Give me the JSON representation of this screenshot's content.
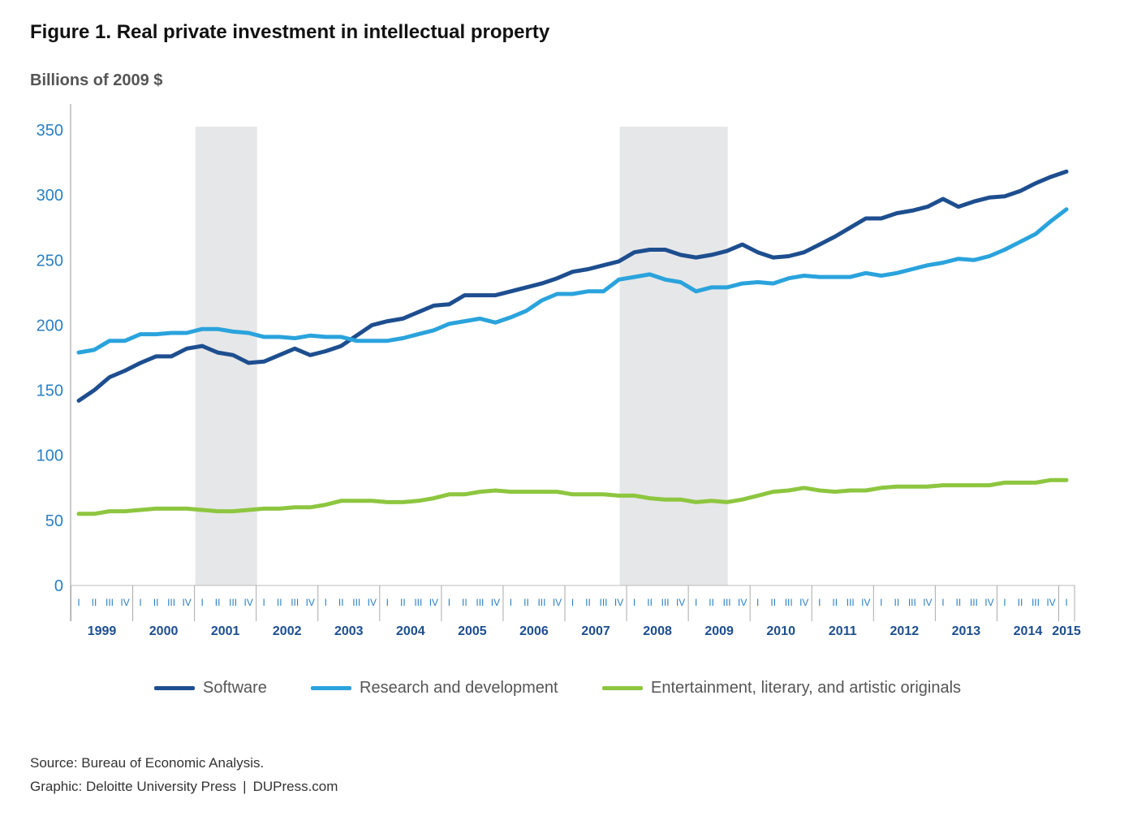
{
  "header": {
    "title": "Figure 1. Real private investment in intellectual property",
    "subtitle": "Billions of 2009 $"
  },
  "footer": {
    "source": "Source: Bureau of Economic Analysis.",
    "graphic": "Graphic: Deloitte University Press",
    "separator": "|",
    "site": "DUPress.com"
  },
  "legend": [
    {
      "label": "Software",
      "color": "#1d4e8f"
    },
    {
      "label": "Research and development",
      "color": "#2aa3dc"
    },
    {
      "label": "Entertainment, literary, and artistic originals",
      "color": "#8dc63f"
    }
  ],
  "chart_data": {
    "type": "line",
    "title": "Figure 1. Real private investment in intellectual property",
    "ylabel": "Billions of 2009 $",
    "ylim": [
      0,
      350
    ],
    "yticks": [
      0,
      50,
      100,
      150,
      200,
      250,
      300,
      350
    ],
    "quarter_labels": [
      "I",
      "II",
      "III",
      "IV"
    ],
    "years": [
      "1999",
      "2000",
      "2001",
      "2002",
      "2003",
      "2004",
      "2005",
      "2006",
      "2007",
      "2008",
      "2009",
      "2010",
      "2011",
      "2012",
      "2013",
      "2014",
      "2015"
    ],
    "start": "1999 Q1",
    "end": "2015 Q1",
    "recessions": [
      {
        "start_index": 8,
        "end_index": 12,
        "label": "2001 recession"
      },
      {
        "start_index": 35.5,
        "end_index": 42.5,
        "label": "2007-2009 recession"
      }
    ],
    "series": [
      {
        "name": "Software",
        "color": "#1d4e8f",
        "values": [
          142,
          150,
          160,
          165,
          171,
          176,
          176,
          182,
          184,
          179,
          177,
          171,
          172,
          177,
          182,
          177,
          180,
          184,
          192,
          200,
          203,
          205,
          210,
          215,
          216,
          223,
          223,
          223,
          226,
          229,
          232,
          236,
          241,
          243,
          246,
          249,
          256,
          258,
          258,
          254,
          252,
          254,
          257,
          262,
          256,
          252,
          253,
          256,
          262,
          268,
          275,
          282,
          282,
          286,
          288,
          291,
          297,
          291,
          295,
          298,
          299,
          303,
          309,
          314,
          318
        ]
      },
      {
        "name": "Research and development",
        "color": "#2aa3dc",
        "values": [
          179,
          181,
          188,
          188,
          193,
          193,
          194,
          194,
          197,
          197,
          195,
          194,
          191,
          191,
          190,
          192,
          191,
          191,
          188,
          188,
          188,
          190,
          193,
          196,
          201,
          203,
          205,
          202,
          206,
          211,
          219,
          224,
          224,
          226,
          226,
          235,
          237,
          239,
          235,
          233,
          226,
          229,
          229,
          232,
          233,
          232,
          236,
          238,
          237,
          237,
          237,
          240,
          238,
          240,
          243,
          246,
          248,
          251,
          250,
          253,
          258,
          264,
          270,
          280,
          289
        ]
      },
      {
        "name": "Entertainment, literary, and artistic originals",
        "color": "#8dc63f",
        "values": [
          55,
          55,
          57,
          57,
          58,
          59,
          59,
          59,
          58,
          57,
          57,
          58,
          59,
          59,
          60,
          60,
          62,
          65,
          65,
          65,
          64,
          64,
          65,
          67,
          70,
          70,
          72,
          73,
          72,
          72,
          72,
          72,
          70,
          70,
          70,
          69,
          69,
          67,
          66,
          66,
          64,
          65,
          64,
          66,
          69,
          72,
          73,
          75,
          73,
          72,
          73,
          73,
          75,
          76,
          76,
          76,
          77,
          77,
          77,
          77,
          79,
          79,
          79,
          81,
          81
        ]
      }
    ]
  }
}
